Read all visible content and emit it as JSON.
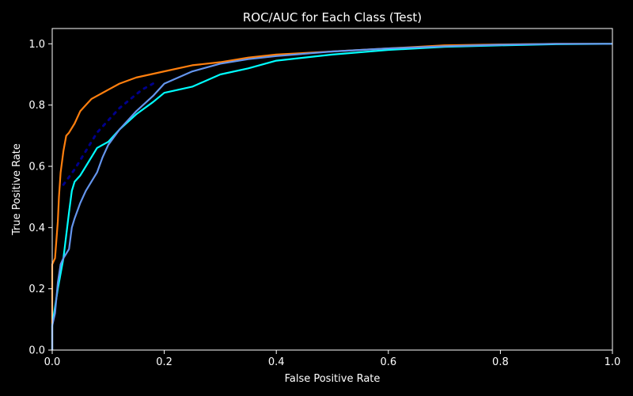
{
  "chart_data": {
    "type": "line",
    "title": "ROC/AUC for Each Class (Test)",
    "xlabel": "False Positive Rate",
    "ylabel": "True Positive Rate",
    "xlim": [
      0.0,
      1.0
    ],
    "ylim": [
      0.0,
      1.05
    ],
    "x_ticks": [
      "0.0",
      "0.2",
      "0.4",
      "0.6",
      "0.8",
      "1.0"
    ],
    "y_ticks": [
      "0.0",
      "0.2",
      "0.4",
      "0.6",
      "0.8",
      "1.0"
    ],
    "x_tick_values": [
      0.0,
      0.2,
      0.4,
      0.6,
      0.8,
      1.0
    ],
    "y_tick_values": [
      0.0,
      0.2,
      0.4,
      0.6,
      0.8,
      1.0
    ],
    "grid": false,
    "legend": false,
    "background": "#000000",
    "series": [
      {
        "color": "#ff7f0e",
        "points": [
          [
            0.0,
            0.0
          ],
          [
            0.0,
            0.28
          ],
          [
            0.005,
            0.3
          ],
          [
            0.01,
            0.42
          ],
          [
            0.012,
            0.5
          ],
          [
            0.015,
            0.58
          ],
          [
            0.02,
            0.65
          ],
          [
            0.025,
            0.7
          ],
          [
            0.03,
            0.71
          ],
          [
            0.04,
            0.74
          ],
          [
            0.05,
            0.78
          ],
          [
            0.06,
            0.8
          ],
          [
            0.07,
            0.82
          ],
          [
            0.08,
            0.83
          ],
          [
            0.1,
            0.85
          ],
          [
            0.12,
            0.87
          ],
          [
            0.15,
            0.89
          ],
          [
            0.2,
            0.91
          ],
          [
            0.25,
            0.93
          ],
          [
            0.3,
            0.94
          ],
          [
            0.35,
            0.955
          ],
          [
            0.4,
            0.965
          ],
          [
            0.5,
            0.975
          ],
          [
            0.6,
            0.985
          ],
          [
            0.7,
            0.995
          ],
          [
            0.8,
            0.998
          ],
          [
            0.9,
            1.0
          ],
          [
            1.0,
            1.0
          ]
        ]
      },
      {
        "color": "#00ffff",
        "points": [
          [
            0.0,
            0.0
          ],
          [
            0.0,
            0.08
          ],
          [
            0.01,
            0.2
          ],
          [
            0.02,
            0.3
          ],
          [
            0.03,
            0.45
          ],
          [
            0.035,
            0.52
          ],
          [
            0.04,
            0.55
          ],
          [
            0.05,
            0.57
          ],
          [
            0.06,
            0.6
          ],
          [
            0.07,
            0.63
          ],
          [
            0.08,
            0.66
          ],
          [
            0.1,
            0.68
          ],
          [
            0.12,
            0.72
          ],
          [
            0.15,
            0.77
          ],
          [
            0.18,
            0.81
          ],
          [
            0.2,
            0.84
          ],
          [
            0.25,
            0.86
          ],
          [
            0.3,
            0.9
          ],
          [
            0.35,
            0.92
          ],
          [
            0.4,
            0.945
          ],
          [
            0.5,
            0.965
          ],
          [
            0.6,
            0.98
          ],
          [
            0.7,
            0.99
          ],
          [
            0.8,
            0.995
          ],
          [
            0.9,
            0.999
          ],
          [
            1.0,
            1.0
          ]
        ]
      },
      {
        "color": "#6495ed",
        "points": [
          [
            0.0,
            0.0
          ],
          [
            0.0,
            0.08
          ],
          [
            0.005,
            0.12
          ],
          [
            0.01,
            0.22
          ],
          [
            0.015,
            0.28
          ],
          [
            0.02,
            0.3
          ],
          [
            0.03,
            0.33
          ],
          [
            0.035,
            0.4
          ],
          [
            0.04,
            0.43
          ],
          [
            0.05,
            0.48
          ],
          [
            0.06,
            0.52
          ],
          [
            0.07,
            0.55
          ],
          [
            0.08,
            0.58
          ],
          [
            0.09,
            0.63
          ],
          [
            0.1,
            0.67
          ],
          [
            0.12,
            0.72
          ],
          [
            0.15,
            0.78
          ],
          [
            0.18,
            0.83
          ],
          [
            0.2,
            0.87
          ],
          [
            0.25,
            0.91
          ],
          [
            0.3,
            0.935
          ],
          [
            0.35,
            0.95
          ],
          [
            0.4,
            0.96
          ],
          [
            0.5,
            0.975
          ],
          [
            0.6,
            0.985
          ],
          [
            0.7,
            0.992
          ],
          [
            0.8,
            0.997
          ],
          [
            0.9,
            1.0
          ],
          [
            1.0,
            1.0
          ]
        ]
      },
      {
        "color": "#00008b",
        "style": "dotted",
        "points": [
          [
            0.02,
            0.54
          ],
          [
            0.04,
            0.59
          ],
          [
            0.06,
            0.65
          ],
          [
            0.08,
            0.71
          ],
          [
            0.1,
            0.75
          ],
          [
            0.12,
            0.79
          ],
          [
            0.14,
            0.82
          ],
          [
            0.16,
            0.85
          ],
          [
            0.18,
            0.87
          ]
        ]
      }
    ]
  }
}
